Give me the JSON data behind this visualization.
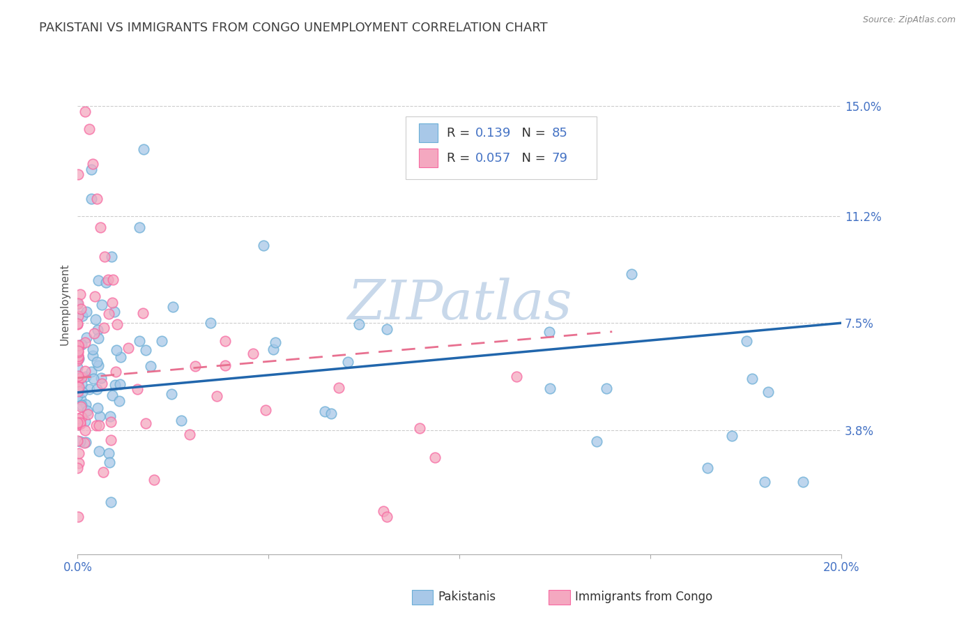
{
  "title": "PAKISTANI VS IMMIGRANTS FROM CONGO UNEMPLOYMENT CORRELATION CHART",
  "source": "Source: ZipAtlas.com",
  "ylabel": "Unemployment",
  "xlim": [
    0.0,
    0.2
  ],
  "ylim": [
    -0.005,
    0.168
  ],
  "ytick_vals": [
    0.038,
    0.075,
    0.112,
    0.15
  ],
  "ytick_labels": [
    "3.8%",
    "7.5%",
    "11.2%",
    "15.0%"
  ],
  "xtick_vals": [
    0.0,
    0.05,
    0.1,
    0.15,
    0.2
  ],
  "xtick_labels": [
    "0.0%",
    "",
    "",
    "",
    "20.0%"
  ],
  "legend_blue_r": "0.139",
  "legend_blue_n": "85",
  "legend_pink_r": "0.057",
  "legend_pink_n": "79",
  "blue_color": "#a8c8e8",
  "pink_color": "#f4a8c0",
  "blue_edge_color": "#6baed6",
  "pink_edge_color": "#f768a1",
  "trend_blue_color": "#2166ac",
  "trend_pink_color": "#e87090",
  "watermark": "ZIPatlas",
  "watermark_color": "#c8d8ea",
  "background_color": "#ffffff",
  "grid_color": "#cccccc",
  "axis_tick_color": "#4472c4",
  "title_color": "#404040",
  "source_color": "#888888",
  "ylabel_color": "#555555",
  "title_fontsize": 13,
  "ylabel_fontsize": 11,
  "tick_fontsize": 12,
  "legend_fontsize": 13,
  "blue_trend_x": [
    0.0,
    0.2
  ],
  "blue_trend_y": [
    0.051,
    0.075
  ],
  "pink_trend_x": [
    0.0,
    0.14
  ],
  "pink_trend_y": [
    0.056,
    0.072
  ]
}
